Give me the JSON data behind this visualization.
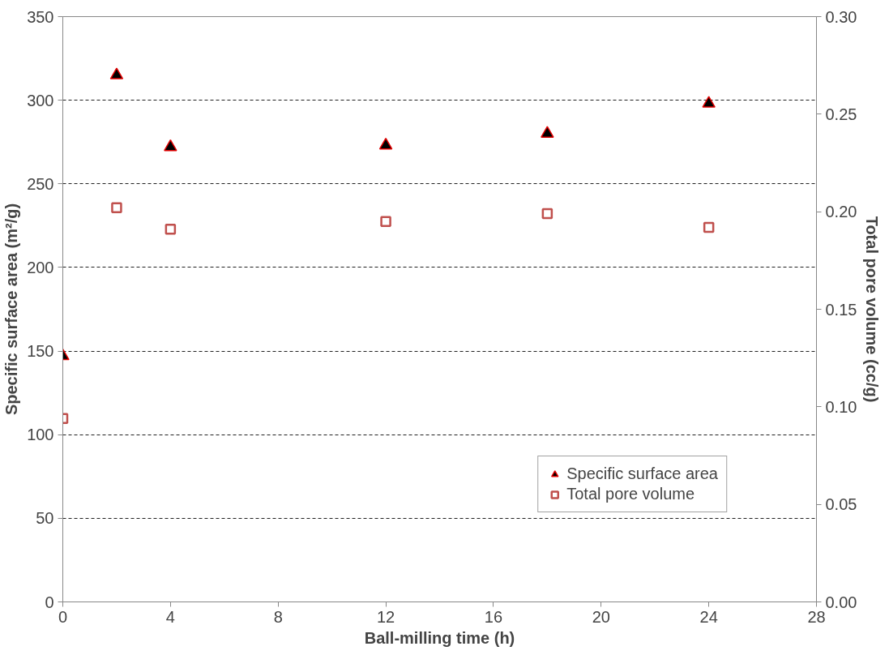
{
  "chart_data": {
    "type": "scatter",
    "xlabel": "Ball-milling time (h)",
    "ylabel": "Specific surface area (m²/g)",
    "y2label": "Total pore volume (cc/g)",
    "x": [
      0,
      2,
      4,
      12,
      18,
      24
    ],
    "xlim": [
      0,
      28
    ],
    "xticks": [
      0,
      4,
      8,
      12,
      16,
      20,
      24,
      28
    ],
    "ylim": [
      0,
      350
    ],
    "yticks": [
      0,
      50,
      100,
      150,
      200,
      250,
      300,
      350
    ],
    "y2lim": [
      0,
      0.3
    ],
    "y2ticks": [
      {
        "value": 0,
        "label": "0.00"
      },
      {
        "value": 0.05,
        "label": "0.05"
      },
      {
        "value": 0.1,
        "label": "0.10"
      },
      {
        "value": 0.15,
        "label": "0.15"
      },
      {
        "value": 0.2,
        "label": "0.20"
      },
      {
        "value": 0.25,
        "label": "0.25"
      },
      {
        "value": 0.3,
        "label": "0.30"
      }
    ],
    "grid": "y",
    "legend": "bottom right",
    "series": [
      {
        "name": "Specific surface area",
        "color": "#000000",
        "marker": "triangle",
        "values": [
          147,
          315,
          272,
          273,
          280,
          298
        ]
      },
      {
        "name": "Total pore volume",
        "color": "#c0504d",
        "marker": "square",
        "axis": "y2",
        "values": [
          0.094,
          0.202,
          0.191,
          0.195,
          0.199,
          0.192
        ]
      }
    ]
  }
}
